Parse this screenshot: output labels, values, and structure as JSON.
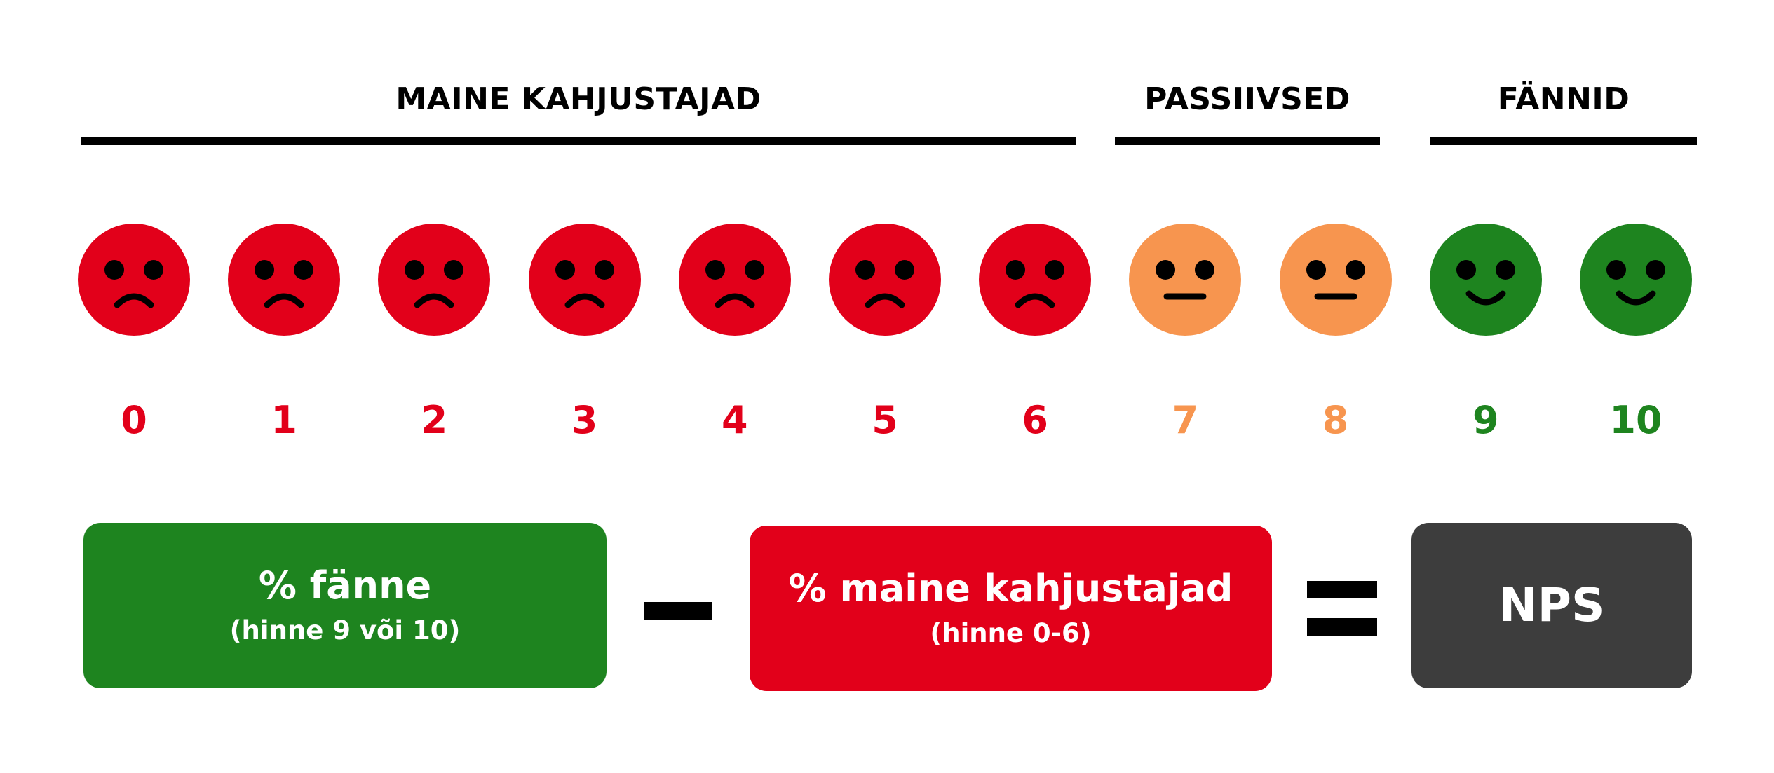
{
  "groups": {
    "detractors": {
      "title": "MAINE KAHJUSTAJAD",
      "color": "#e2001a"
    },
    "passives": {
      "title": "PASSIIVSED",
      "color": "#f7954f"
    },
    "promoters": {
      "title": "FÄNNID",
      "color": "#1e841f"
    }
  },
  "scale": [
    {
      "score": "0",
      "group": "detractors",
      "face": "sad-face-icon"
    },
    {
      "score": "1",
      "group": "detractors",
      "face": "sad-face-icon"
    },
    {
      "score": "2",
      "group": "detractors",
      "face": "sad-face-icon"
    },
    {
      "score": "3",
      "group": "detractors",
      "face": "sad-face-icon"
    },
    {
      "score": "4",
      "group": "detractors",
      "face": "sad-face-icon"
    },
    {
      "score": "5",
      "group": "detractors",
      "face": "sad-face-icon"
    },
    {
      "score": "6",
      "group": "detractors",
      "face": "sad-face-icon"
    },
    {
      "score": "7",
      "group": "passives",
      "face": "neutral-face-icon"
    },
    {
      "score": "8",
      "group": "passives",
      "face": "neutral-face-icon"
    },
    {
      "score": "9",
      "group": "promoters",
      "face": "happy-face-icon"
    },
    {
      "score": "10",
      "group": "promoters",
      "face": "happy-face-icon"
    }
  ],
  "formula": {
    "promoters_box": {
      "main": "% fänne",
      "sub": "(hinne 9 või 10)",
      "color": "#1e841f"
    },
    "detractors_box": {
      "main": "% maine kahjustajad",
      "sub": "(hinne 0-6)",
      "color": "#e2001a"
    },
    "result_box": {
      "main": "NPS",
      "color": "#3d3d3d"
    }
  }
}
